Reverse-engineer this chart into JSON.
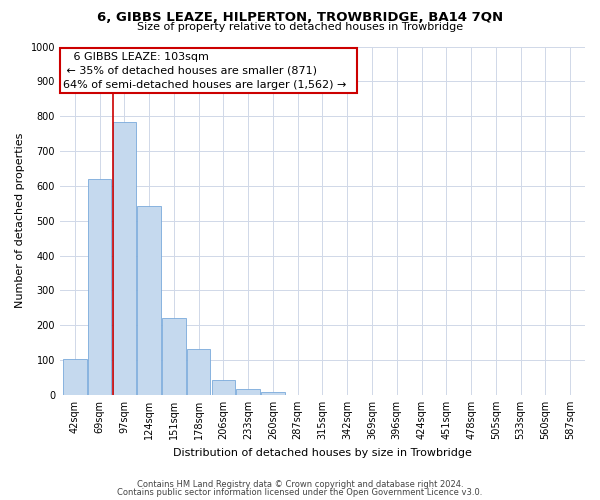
{
  "title": "6, GIBBS LEAZE, HILPERTON, TROWBRIDGE, BA14 7QN",
  "subtitle": "Size of property relative to detached houses in Trowbridge",
  "xlabel": "Distribution of detached houses by size in Trowbridge",
  "ylabel": "Number of detached properties",
  "bar_labels": [
    "42sqm",
    "69sqm",
    "97sqm",
    "124sqm",
    "151sqm",
    "178sqm",
    "206sqm",
    "233sqm",
    "260sqm",
    "287sqm",
    "315sqm",
    "342sqm",
    "369sqm",
    "396sqm",
    "424sqm",
    "451sqm",
    "478sqm",
    "505sqm",
    "533sqm",
    "560sqm",
    "587sqm"
  ],
  "bar_values": [
    103,
    621,
    782,
    541,
    220,
    133,
    44,
    18,
    9,
    0,
    0,
    0,
    0,
    0,
    0,
    0,
    0,
    0,
    0,
    0,
    0
  ],
  "bar_color": "#c5d9ee",
  "bar_edge_color": "#7aaadb",
  "highlight_line_color": "#cc0000",
  "ylim": [
    0,
    1000
  ],
  "yticks": [
    0,
    100,
    200,
    300,
    400,
    500,
    600,
    700,
    800,
    900,
    1000
  ],
  "annotation_title": "6 GIBBS LEAZE: 103sqm",
  "annotation_line1": "← 35% of detached houses are smaller (871)",
  "annotation_line2": "64% of semi-detached houses are larger (1,562) →",
  "annotation_box_color": "#ffffff",
  "annotation_box_edge": "#cc0000",
  "footer_line1": "Contains HM Land Registry data © Crown copyright and database right 2024.",
  "footer_line2": "Contains public sector information licensed under the Open Government Licence v3.0.",
  "background_color": "#ffffff",
  "grid_color": "#d0d8e8",
  "title_fontsize": 9.5,
  "subtitle_fontsize": 8,
  "axis_label_fontsize": 8,
  "tick_fontsize": 7,
  "annotation_fontsize": 8,
  "footer_fontsize": 6
}
